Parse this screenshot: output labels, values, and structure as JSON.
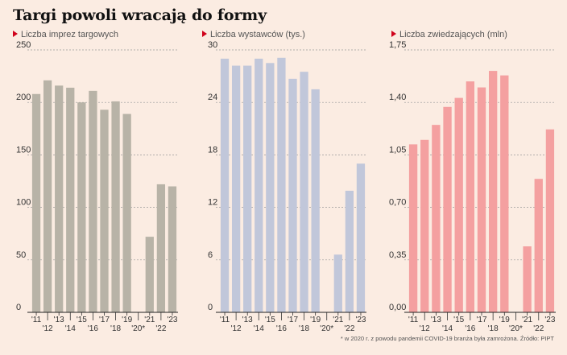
{
  "title": "Targi powoli wracają do formy",
  "footnote": "* w 2020 r. z powodu pandemii COVID-19 branża była zamrożona. Źródło: PIPT",
  "chart_data": [
    {
      "type": "bar",
      "title": "Liczba imprez targowych",
      "categories": [
        "'11",
        "'12",
        "'13",
        "'14",
        "'15",
        "'16",
        "'17",
        "'18",
        "'19",
        "'20*",
        "'21",
        "'22",
        "'23"
      ],
      "values": [
        208,
        221,
        216,
        214,
        200,
        211,
        193,
        201,
        189,
        0,
        72,
        122,
        120
      ],
      "ylim": [
        0,
        250
      ],
      "yticks": [
        0,
        50,
        100,
        150,
        200,
        250
      ],
      "ytick_labels": [
        "0",
        "50",
        "100",
        "150",
        "200",
        "250"
      ],
      "color": "#b8b3a7",
      "grid": true
    },
    {
      "type": "bar",
      "title": "Liczba wystawców (tys.)",
      "categories": [
        "'11",
        "'12",
        "'13",
        "'14",
        "'15",
        "'16",
        "'17",
        "'18",
        "'19",
        "'20*",
        "'21",
        "'22",
        "'23"
      ],
      "values": [
        29.0,
        28.2,
        28.2,
        29.0,
        28.5,
        29.1,
        26.7,
        27.5,
        25.5,
        0,
        6.6,
        13.9,
        17.0
      ],
      "ylim": [
        0,
        30
      ],
      "yticks": [
        0,
        6,
        12,
        18,
        24,
        30
      ],
      "ytick_labels": [
        "0",
        "6",
        "12",
        "18",
        "24",
        "30"
      ],
      "color": "#c1c7da",
      "grid": true
    },
    {
      "type": "bar",
      "title": "Liczba zwiedzających (mln)",
      "categories": [
        "'11",
        "'12",
        "'13",
        "'14",
        "'15",
        "'16",
        "'17",
        "'18",
        "'19",
        "'20*",
        "'21",
        "'22",
        "'23"
      ],
      "values": [
        1.12,
        1.15,
        1.25,
        1.37,
        1.43,
        1.54,
        1.5,
        1.61,
        1.58,
        0,
        0.44,
        0.89,
        1.22
      ],
      "ylim": [
        0,
        1.75
      ],
      "yticks": [
        0,
        0.35,
        0.7,
        1.05,
        1.4,
        1.75
      ],
      "ytick_labels": [
        "0,00",
        "0,35",
        "0,70",
        "1,05",
        "1,40",
        "1,75"
      ],
      "color": "#f4a0a0",
      "grid": true
    }
  ]
}
